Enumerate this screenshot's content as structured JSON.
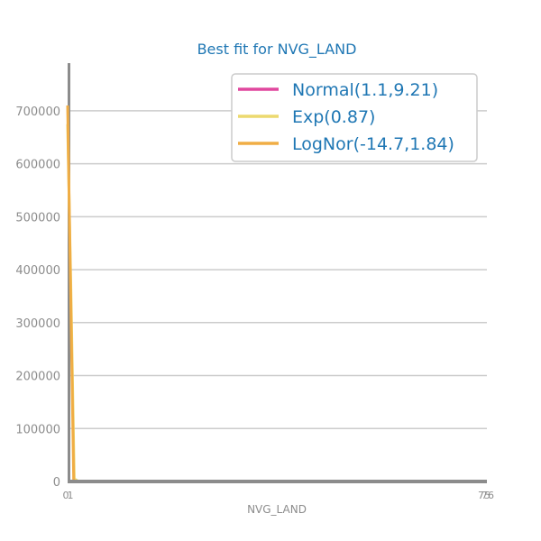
{
  "chart_data": {
    "type": "line",
    "title": "Best fit for NVG_LAND",
    "xlabel": "NVG_LAND",
    "ylabel": "",
    "xlim": [
      0,
      76
    ],
    "ylim": [
      0,
      790000
    ],
    "grid": true,
    "legend_placement": "top-right",
    "x_ticks": [
      "0",
      "1",
      "75",
      "76"
    ],
    "y_ticks": [
      {
        "value": 0,
        "label": "0"
      },
      {
        "value": 100000,
        "label": "100000"
      },
      {
        "value": 200000,
        "label": "200000"
      },
      {
        "value": 300000,
        "label": "300000"
      },
      {
        "value": 400000,
        "label": "400000"
      },
      {
        "value": 500000,
        "label": "500000"
      },
      {
        "value": 600000,
        "label": "600000"
      },
      {
        "value": 700000,
        "label": "700000"
      }
    ],
    "series": [
      {
        "name": "Normal(1.1,9.21)",
        "color": "#e0479e",
        "points": [
          [
            0,
            0
          ],
          [
            76,
            0
          ]
        ]
      },
      {
        "name": "Exp(0.87)",
        "color": "#ecd96f",
        "points": [
          [
            0,
            675000
          ],
          [
            0.6,
            360000
          ],
          [
            1.2,
            5000
          ],
          [
            2,
            0
          ],
          [
            76,
            0
          ]
        ]
      },
      {
        "name": "LogNor(-14.7,1.84)",
        "color": "#f0ad45",
        "points": [
          [
            0,
            710000
          ],
          [
            1.1,
            0
          ],
          [
            76,
            0
          ]
        ]
      }
    ],
    "histogram": {
      "color": "#8c8c8c",
      "bars": [
        {
          "x0": 0,
          "x1": 0.15,
          "value": 790000
        },
        {
          "x0": 0.15,
          "x1": 76,
          "value": 0
        }
      ]
    },
    "colors": {
      "title": "#1f77b4",
      "legend_text": "#1f77b4",
      "tick_text": "#8c8c8c",
      "grid": "#cccccc",
      "axis": "#8c8c8c"
    }
  }
}
